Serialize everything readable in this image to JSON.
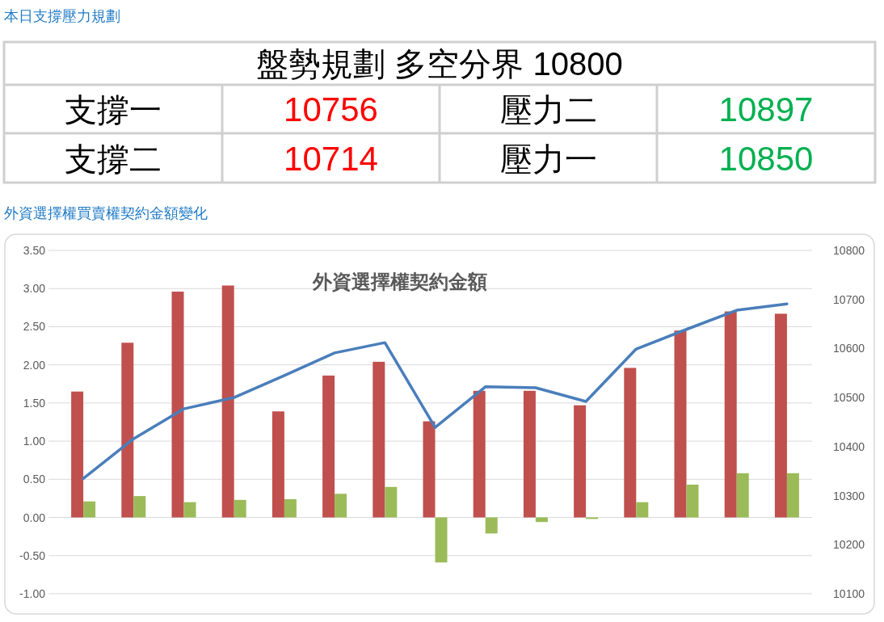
{
  "chart_data": [
    {
      "type": "other",
      "title": "本日支撐壓力規劃",
      "annotations": [
        "盤勢規劃 多空分界 10800",
        "支撐一",
        "10756",
        "壓力二",
        "10897",
        "支撐二",
        "10714",
        "壓力一",
        "10850"
      ],
      "colors": [
        "#000000",
        "#000000",
        "#ff0000",
        "#000000",
        "#00b050",
        "#000000",
        "#ff0000",
        "#000000",
        "#00b050"
      ]
    },
    {
      "type": "bar",
      "title": "外資選擇權買賣權契約金額變化",
      "subtitle": "外資選擇權契約金額",
      "categories": [
        null,
        null,
        null,
        null,
        null,
        null,
        null,
        null,
        null,
        null,
        null,
        null,
        null,
        null,
        null
      ],
      "series": [
        {
          "color": "#c0504d",
          "values": [
            1.65,
            2.29,
            2.96,
            3.04,
            1.39,
            1.86,
            2.04,
            1.26,
            1.66,
            1.66,
            1.47,
            1.96,
            2.45,
            2.7,
            2.67
          ]
        },
        {
          "color": "#9bbb59",
          "values": [
            0.21,
            0.28,
            0.2,
            0.23,
            0.24,
            0.31,
            0.4,
            -0.59,
            -0.21,
            -0.06,
            -0.02,
            0.2,
            0.43,
            0.58,
            0.58
          ]
        },
        {
          "type": "line",
          "axis": "y2",
          "color": "#4a7ebb",
          "values": [
            10335,
            10416,
            10477,
            10500,
            10545,
            10591,
            10612,
            10439,
            10522,
            10520,
            10492,
            10599,
            10639,
            10678,
            10691
          ]
        }
      ],
      "ylim": [
        -1.0,
        3.5
      ],
      "yticks": [
        {
          "value": -1.0,
          "label": "-1.00"
        },
        {
          "value": -0.5,
          "label": "-0.50"
        },
        {
          "value": 0,
          "label": "0.00"
        },
        {
          "value": 0.5,
          "label": "0.50"
        },
        {
          "value": 1.0,
          "label": "1.00"
        },
        {
          "value": 1.5,
          "label": "1.50"
        },
        {
          "value": 2.0,
          "label": "2.00"
        },
        {
          "value": 2.5,
          "label": "2.50"
        },
        {
          "value": 3.0,
          "label": "3.00"
        },
        {
          "value": 3.5,
          "label": "3.50"
        }
      ],
      "y2lim": [
        10100,
        10800
      ],
      "y2ticks": [
        10100,
        10200,
        10300,
        10400,
        10500,
        10600,
        10700,
        10800
      ],
      "grid": "y",
      "marker": "none",
      "line_style": "solid"
    }
  ]
}
